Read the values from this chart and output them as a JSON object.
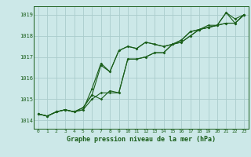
{
  "background_color": "#cce8e8",
  "grid_color": "#aacccc",
  "line_color": "#1a5e1a",
  "x_labels": [
    "0",
    "1",
    "2",
    "3",
    "4",
    "5",
    "6",
    "7",
    "8",
    "9",
    "10",
    "11",
    "12",
    "13",
    "14",
    "15",
    "16",
    "17",
    "18",
    "19",
    "20",
    "21",
    "22",
    "23"
  ],
  "ylim": [
    1013.6,
    1019.4
  ],
  "yticks": [
    1014,
    1015,
    1016,
    1017,
    1018,
    1019
  ],
  "xlabel": "Graphe pression niveau de la mer (hPa)",
  "series": [
    [
      1014.3,
      1014.2,
      1014.4,
      1014.5,
      1014.4,
      1014.5,
      1015.5,
      1016.7,
      1016.3,
      1017.3,
      1017.5,
      1017.4,
      1017.7,
      1017.6,
      1017.5,
      1017.6,
      1017.7,
      1018.0,
      1018.3,
      1018.4,
      1018.5,
      1019.1,
      1018.6,
      1019.0
    ],
    [
      1014.3,
      1014.2,
      1014.4,
      1014.5,
      1014.4,
      1014.5,
      1015.0,
      1015.3,
      1015.3,
      1015.3,
      1016.9,
      1016.9,
      1017.0,
      1017.2,
      1017.2,
      1017.6,
      1017.8,
      1018.2,
      1018.3,
      1018.4,
      1018.5,
      1018.6,
      1018.6,
      1019.0
    ],
    [
      1014.3,
      1014.2,
      1014.4,
      1014.5,
      1014.4,
      1014.6,
      1015.2,
      1016.6,
      1016.3,
      1017.3,
      1017.5,
      1017.4,
      1017.7,
      1017.6,
      1017.5,
      1017.6,
      1017.7,
      1018.0,
      1018.3,
      1018.5,
      1018.5,
      1019.1,
      1018.8,
      1019.0
    ],
    [
      1014.3,
      1014.2,
      1014.4,
      1014.5,
      1014.4,
      1014.6,
      1015.2,
      1015.0,
      1015.4,
      1015.3,
      1016.9,
      1016.9,
      1017.0,
      1017.2,
      1017.2,
      1017.6,
      1017.8,
      1018.2,
      1018.3,
      1018.4,
      1018.5,
      1018.6,
      1018.6,
      1019.0
    ]
  ],
  "figsize": [
    3.2,
    2.0
  ],
  "dpi": 100
}
